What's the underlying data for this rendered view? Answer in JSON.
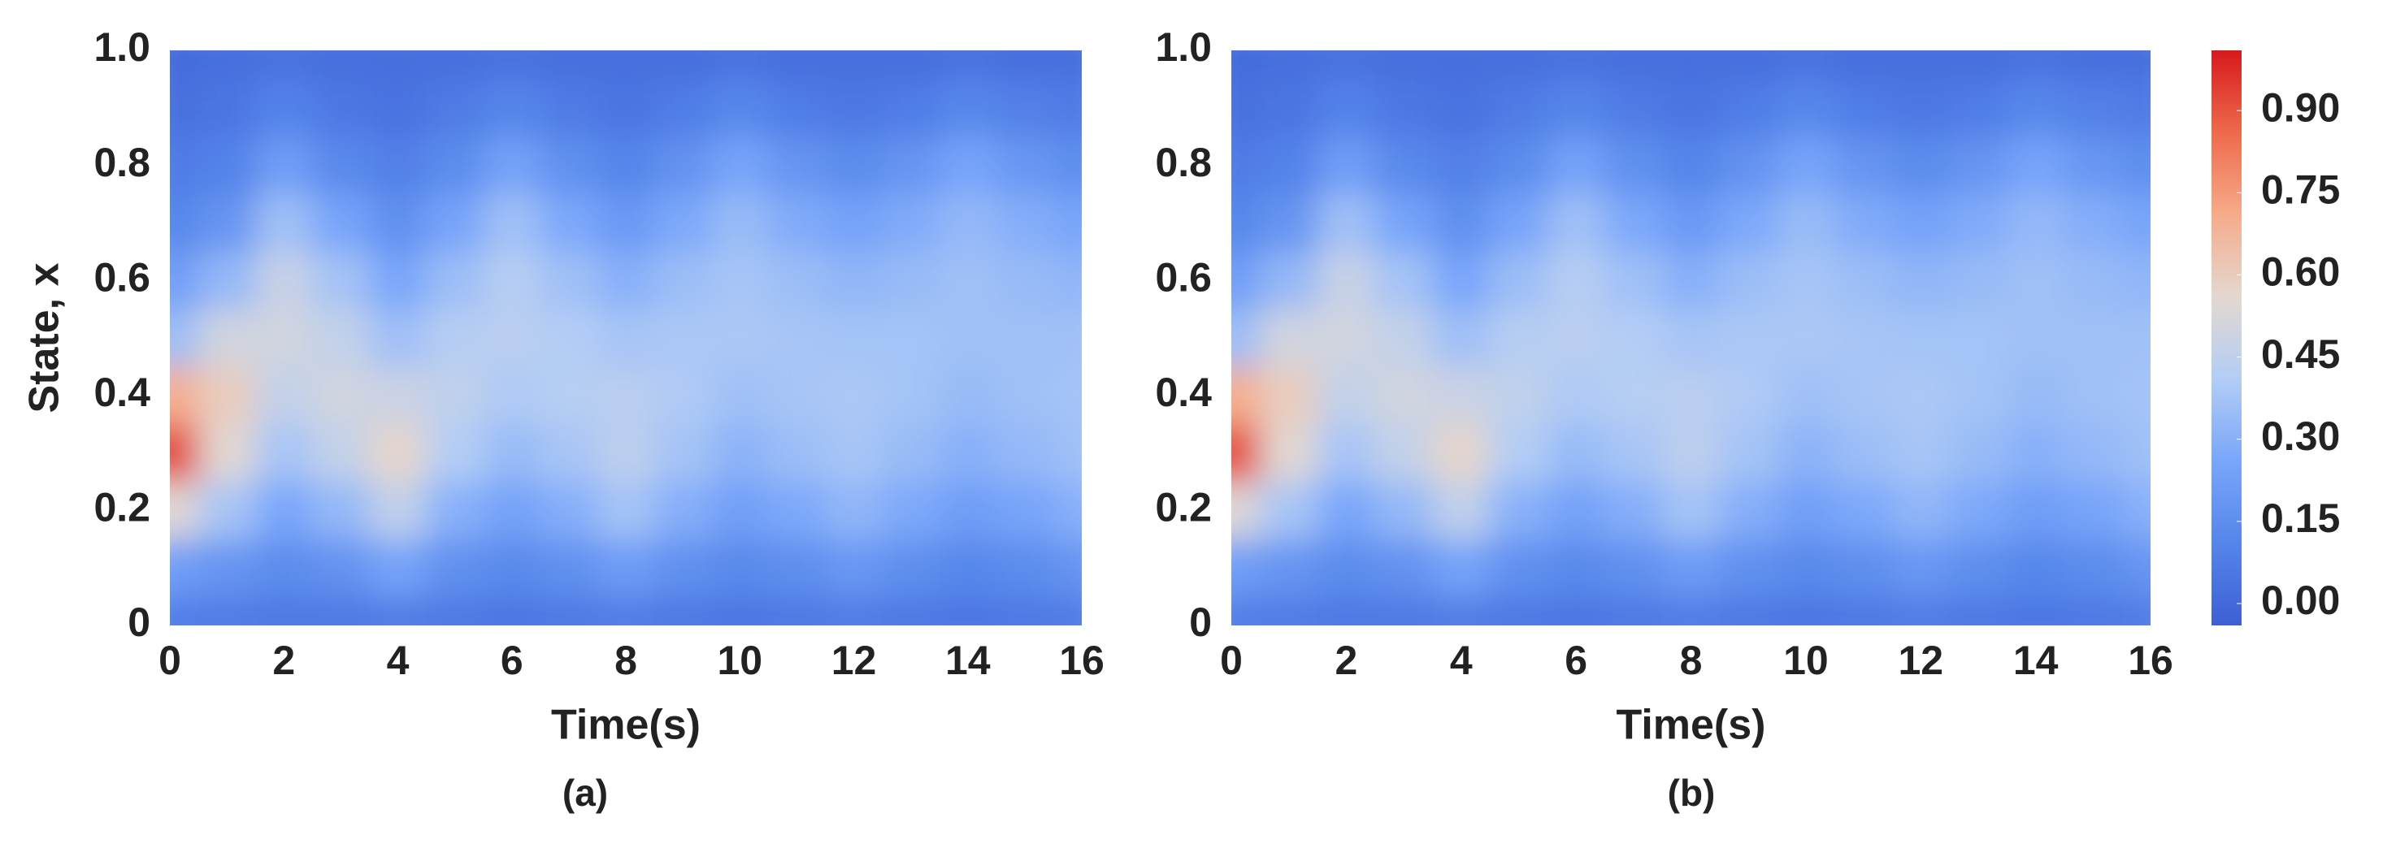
{
  "chart_data": [
    {
      "type": "contour",
      "title": "(a)",
      "x_label": "Time(s)",
      "y_label": "State, x",
      "x": [
        0,
        1,
        2,
        3,
        4,
        5,
        6,
        7,
        8,
        9,
        10,
        11,
        12,
        13,
        14,
        15,
        16
      ],
      "y": [
        0,
        0.1,
        0.2,
        0.3,
        0.4,
        0.5,
        0.6,
        0.7,
        0.8,
        0.9,
        1
      ],
      "z": [
        [
          0.08,
          0.22,
          0.55,
          0.93,
          0.7,
          0.35,
          0.22,
          0.12,
          0.07,
          0.03,
          0.01
        ],
        [
          0.07,
          0.18,
          0.38,
          0.55,
          0.6,
          0.5,
          0.33,
          0.18,
          0.1,
          0.05,
          0.02
        ],
        [
          0.06,
          0.14,
          0.26,
          0.38,
          0.46,
          0.5,
          0.47,
          0.36,
          0.22,
          0.1,
          0.03
        ],
        [
          0.06,
          0.17,
          0.33,
          0.46,
          0.5,
          0.46,
          0.37,
          0.25,
          0.13,
          0.06,
          0.02
        ],
        [
          0.07,
          0.24,
          0.45,
          0.57,
          0.48,
          0.36,
          0.26,
          0.16,
          0.09,
          0.04,
          0.02
        ],
        [
          0.06,
          0.16,
          0.3,
          0.41,
          0.45,
          0.42,
          0.35,
          0.25,
          0.14,
          0.07,
          0.02
        ],
        [
          0.05,
          0.13,
          0.24,
          0.34,
          0.4,
          0.43,
          0.42,
          0.36,
          0.24,
          0.11,
          0.03
        ],
        [
          0.06,
          0.16,
          0.29,
          0.38,
          0.42,
          0.41,
          0.36,
          0.27,
          0.16,
          0.07,
          0.02
        ],
        [
          0.07,
          0.21,
          0.37,
          0.44,
          0.43,
          0.38,
          0.3,
          0.2,
          0.11,
          0.05,
          0.02
        ],
        [
          0.06,
          0.16,
          0.29,
          0.37,
          0.4,
          0.39,
          0.35,
          0.27,
          0.17,
          0.08,
          0.02
        ],
        [
          0.05,
          0.13,
          0.23,
          0.31,
          0.36,
          0.39,
          0.38,
          0.34,
          0.25,
          0.12,
          0.03
        ],
        [
          0.06,
          0.15,
          0.27,
          0.35,
          0.38,
          0.38,
          0.35,
          0.28,
          0.18,
          0.08,
          0.02
        ],
        [
          0.07,
          0.19,
          0.32,
          0.38,
          0.39,
          0.37,
          0.32,
          0.24,
          0.14,
          0.06,
          0.02
        ],
        [
          0.06,
          0.15,
          0.27,
          0.34,
          0.37,
          0.37,
          0.34,
          0.28,
          0.18,
          0.08,
          0.02
        ],
        [
          0.05,
          0.12,
          0.22,
          0.3,
          0.34,
          0.36,
          0.36,
          0.33,
          0.25,
          0.12,
          0.03
        ],
        [
          0.06,
          0.14,
          0.25,
          0.33,
          0.36,
          0.36,
          0.34,
          0.29,
          0.19,
          0.09,
          0.02
        ],
        [
          0.07,
          0.18,
          0.3,
          0.36,
          0.37,
          0.36,
          0.32,
          0.25,
          0.15,
          0.07,
          0.02
        ]
      ],
      "xlim": [
        0,
        16
      ],
      "ylim": [
        0,
        1
      ],
      "xticks": [
        0,
        2,
        4,
        6,
        8,
        10,
        12,
        14,
        16
      ],
      "yticks": [
        0,
        0.2,
        0.4,
        0.6,
        0.8,
        {
          "value": 1,
          "label": "1.0"
        }
      ],
      "clim": [
        -0.04,
        1.01
      ],
      "colormap": [
        "#3d5fd4",
        "#5585ea",
        "#79a6fa",
        "#b3cdf5",
        "#e4d8d0",
        "#f6ab8a",
        "#ee6a4c",
        "#d7191c"
      ]
    },
    {
      "type": "contour",
      "title": "(b)",
      "x_label": "Time(s)",
      "x": [
        0,
        1,
        2,
        3,
        4,
        5,
        6,
        7,
        8,
        9,
        10,
        11,
        12,
        13,
        14,
        15,
        16
      ],
      "y": [
        0,
        0.1,
        0.2,
        0.3,
        0.4,
        0.5,
        0.6,
        0.7,
        0.8,
        0.9,
        1
      ],
      "z": [
        [
          0.08,
          0.22,
          0.54,
          0.92,
          0.7,
          0.35,
          0.22,
          0.12,
          0.07,
          0.03,
          0.01
        ],
        [
          0.07,
          0.18,
          0.38,
          0.55,
          0.6,
          0.5,
          0.33,
          0.18,
          0.1,
          0.05,
          0.02
        ],
        [
          0.06,
          0.14,
          0.26,
          0.38,
          0.46,
          0.5,
          0.47,
          0.36,
          0.22,
          0.1,
          0.03
        ],
        [
          0.06,
          0.17,
          0.33,
          0.46,
          0.5,
          0.46,
          0.37,
          0.25,
          0.13,
          0.06,
          0.02
        ],
        [
          0.07,
          0.24,
          0.45,
          0.57,
          0.48,
          0.36,
          0.26,
          0.16,
          0.09,
          0.04,
          0.02
        ],
        [
          0.06,
          0.16,
          0.3,
          0.41,
          0.45,
          0.42,
          0.35,
          0.25,
          0.14,
          0.07,
          0.02
        ],
        [
          0.05,
          0.13,
          0.24,
          0.34,
          0.4,
          0.43,
          0.42,
          0.36,
          0.24,
          0.11,
          0.03
        ],
        [
          0.06,
          0.16,
          0.29,
          0.38,
          0.42,
          0.41,
          0.36,
          0.27,
          0.16,
          0.07,
          0.02
        ],
        [
          0.07,
          0.21,
          0.37,
          0.44,
          0.43,
          0.38,
          0.3,
          0.2,
          0.11,
          0.05,
          0.02
        ],
        [
          0.06,
          0.16,
          0.29,
          0.37,
          0.4,
          0.39,
          0.35,
          0.27,
          0.17,
          0.08,
          0.02
        ],
        [
          0.05,
          0.13,
          0.23,
          0.31,
          0.36,
          0.39,
          0.38,
          0.34,
          0.25,
          0.12,
          0.03
        ],
        [
          0.06,
          0.15,
          0.27,
          0.35,
          0.38,
          0.38,
          0.35,
          0.28,
          0.18,
          0.08,
          0.02
        ],
        [
          0.07,
          0.19,
          0.32,
          0.38,
          0.39,
          0.37,
          0.32,
          0.24,
          0.14,
          0.06,
          0.02
        ],
        [
          0.06,
          0.15,
          0.27,
          0.34,
          0.37,
          0.37,
          0.34,
          0.28,
          0.18,
          0.08,
          0.02
        ],
        [
          0.05,
          0.12,
          0.22,
          0.3,
          0.34,
          0.36,
          0.36,
          0.33,
          0.25,
          0.12,
          0.03
        ],
        [
          0.06,
          0.14,
          0.25,
          0.33,
          0.36,
          0.36,
          0.34,
          0.29,
          0.19,
          0.09,
          0.02
        ],
        [
          0.07,
          0.18,
          0.3,
          0.36,
          0.37,
          0.36,
          0.32,
          0.25,
          0.15,
          0.07,
          0.02
        ]
      ],
      "xlim": [
        0,
        16
      ],
      "ylim": [
        0,
        1
      ],
      "xticks": [
        0,
        2,
        4,
        6,
        8,
        10,
        12,
        14,
        16
      ],
      "yticks": [
        0,
        0.2,
        0.4,
        0.6,
        0.8,
        {
          "value": 1,
          "label": "1.0"
        }
      ],
      "clim": [
        -0.04,
        1.01
      ],
      "colormap": [
        "#3d5fd4",
        "#5585ea",
        "#79a6fa",
        "#b3cdf5",
        "#e4d8d0",
        "#f6ab8a",
        "#ee6a4c",
        "#d7191c"
      ],
      "colorbar_ticks": [
        {
          "value": 0,
          "label": "0.00"
        },
        0.15,
        {
          "value": 0.3,
          "label": "0.30"
        },
        0.45,
        {
          "value": 0.6,
          "label": "0.60"
        },
        0.75,
        {
          "value": 0.9,
          "label": "0.90"
        }
      ]
    }
  ]
}
